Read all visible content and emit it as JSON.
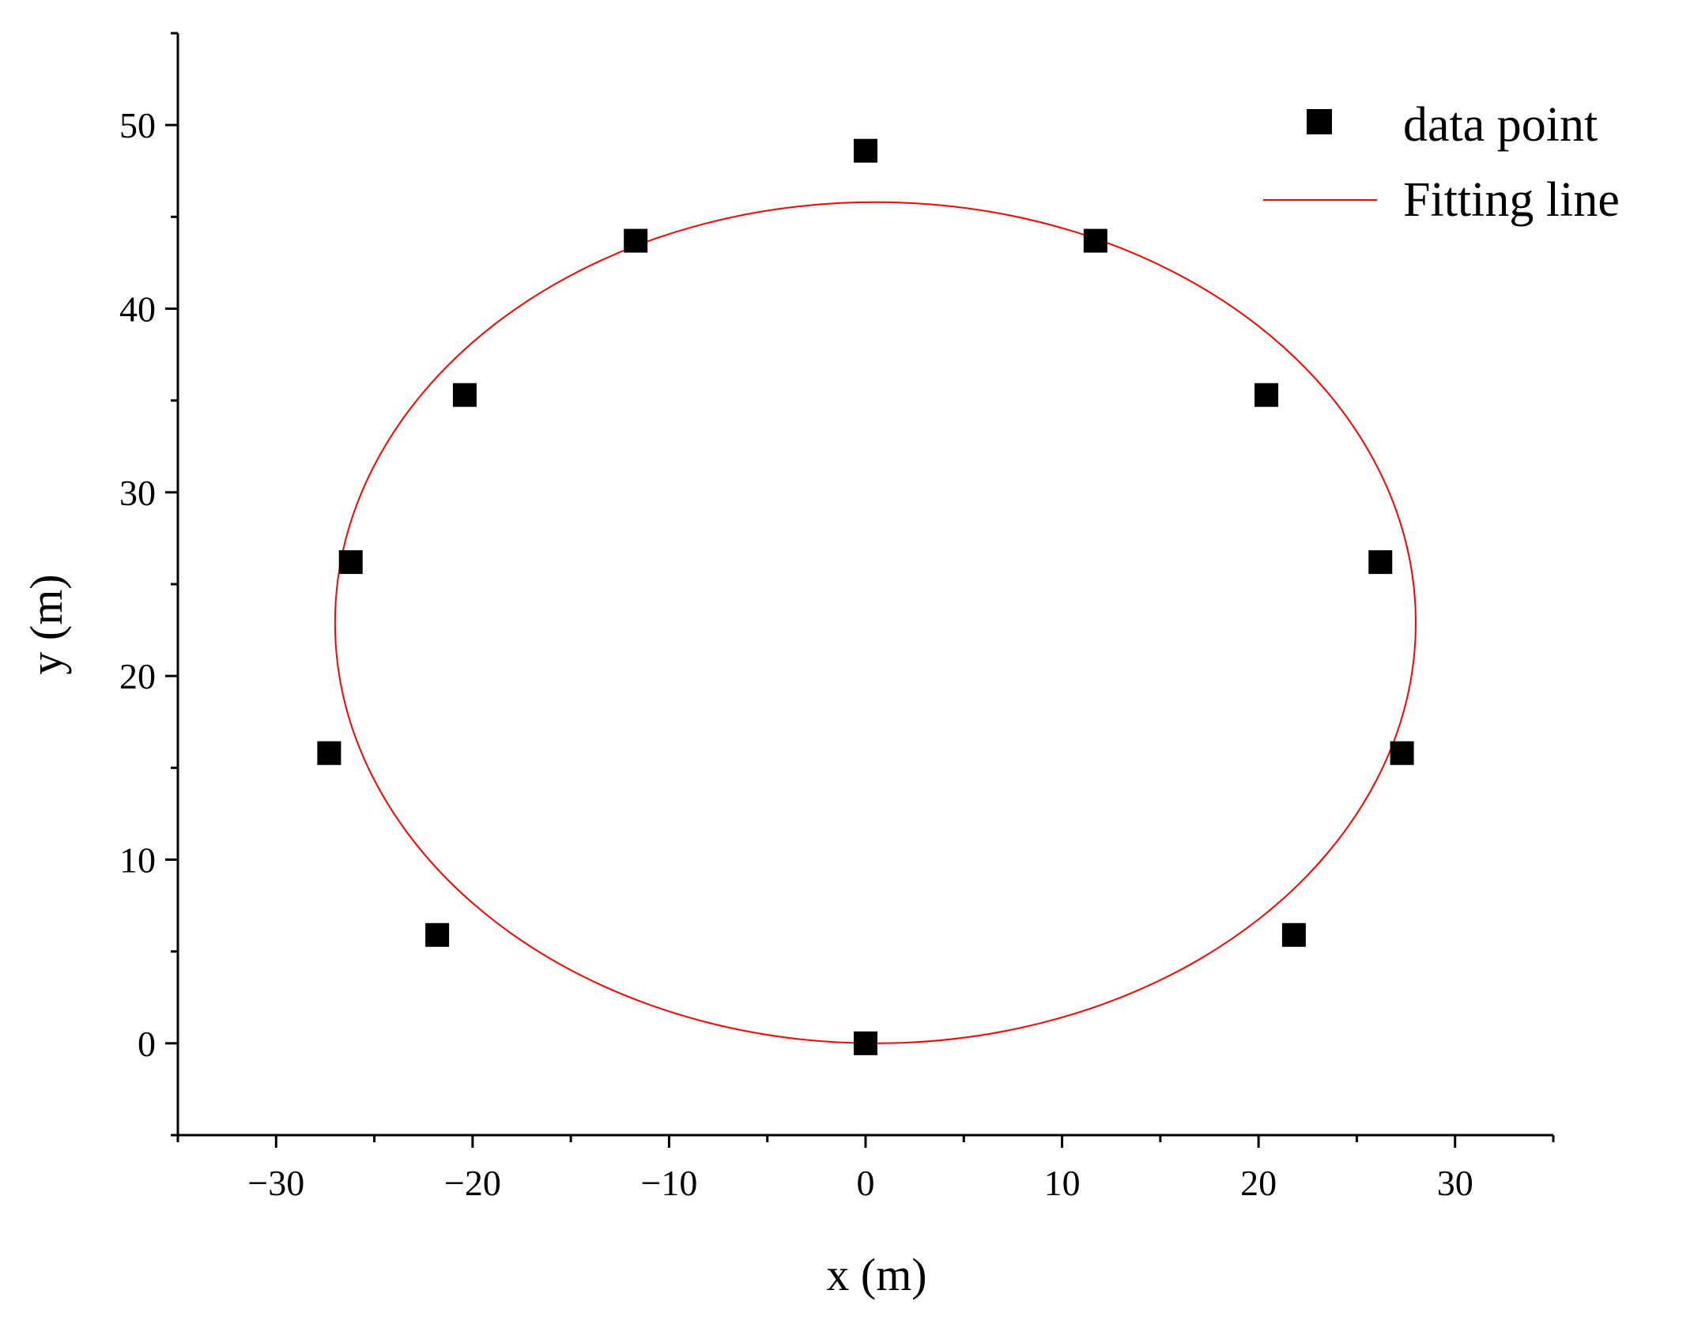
{
  "chart_data": {
    "type": "scatter",
    "title": "",
    "xlabel": "x (m)",
    "ylabel": "y (m)",
    "xlim": [
      -35,
      35
    ],
    "ylim": [
      -5,
      55
    ],
    "xticks": [
      -30,
      -20,
      -10,
      0,
      10,
      20,
      30
    ],
    "yticks": [
      0,
      10,
      20,
      30,
      40,
      50
    ],
    "xtick_labels": [
      "−30",
      "−20",
      "−10",
      "0",
      "10",
      "20",
      "30"
    ],
    "ytick_labels": [
      "0",
      "10",
      "20",
      "30",
      "40",
      "50"
    ],
    "grid": false,
    "legend_position": "top-right",
    "series": [
      {
        "name": "data point",
        "kind": "scatter",
        "marker": "square",
        "color": "#000000",
        "x": [
          0,
          -11.7,
          11.7,
          -20.4,
          20.4,
          -26.2,
          26.2,
          -27.3,
          27.3,
          -21.8,
          21.8,
          0
        ],
        "y": [
          48.6,
          43.7,
          43.7,
          35.3,
          35.3,
          26.2,
          26.2,
          15.8,
          15.8,
          5.9,
          5.9,
          0
        ]
      },
      {
        "name": "Fitting line",
        "kind": "line",
        "color": "#ff0000",
        "shape": "ellipse",
        "center": [
          0.5,
          22.9
        ],
        "semi_axis_x": 27.5,
        "semi_axis_y": 22.9
      }
    ]
  }
}
